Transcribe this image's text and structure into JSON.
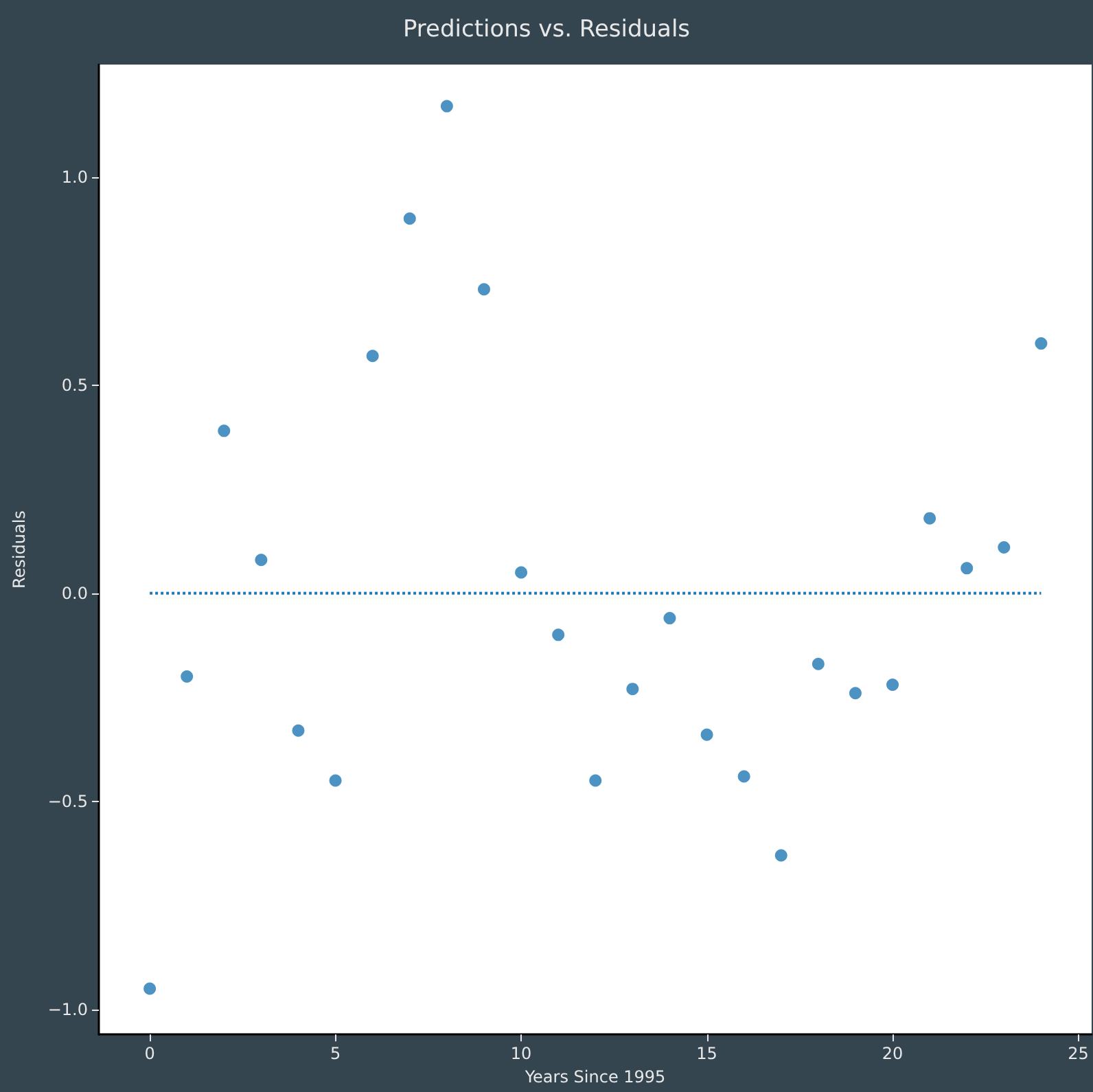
{
  "chart_data": {
    "type": "scatter",
    "title": "Predictions vs. Residuals",
    "xlabel": "Years Since 1995",
    "ylabel": "Residuals",
    "xlim": [
      -1.37,
      25.36
    ],
    "ylim": [
      -1.06,
      1.27
    ],
    "xticks": [
      0,
      5,
      10,
      15,
      20,
      25
    ],
    "yticks": [
      {
        "value": -1,
        "label": "−1.0"
      },
      {
        "value": -0.5,
        "label": "−0.5"
      },
      {
        "value": 0,
        "label": "0.0"
      },
      {
        "value": 0.5,
        "label": "0.5"
      },
      {
        "value": 1,
        "label": "1.0"
      }
    ],
    "grid": false,
    "marker": "circle",
    "series": [
      {
        "color": "#1f77b4",
        "x": [
          0,
          1,
          2,
          3,
          4,
          5,
          6,
          7,
          8,
          9,
          10,
          11,
          12,
          13,
          14,
          15,
          16,
          17,
          18,
          19,
          20,
          21,
          22,
          23,
          24
        ],
        "values": [
          -0.95,
          -0.2,
          0.39,
          0.08,
          -0.33,
          -0.45,
          0.57,
          0.9,
          1.17,
          0.73,
          0.05,
          -0.1,
          -0.45,
          -0.23,
          -0.06,
          -0.34,
          -0.44,
          -0.63,
          -0.17,
          -0.24,
          -0.22,
          0.18,
          0.06,
          0.11,
          0.6
        ]
      },
      {
        "type": "line",
        "color": "#1f77b4",
        "line_style": "dotted",
        "marker": "none",
        "x": [
          0,
          24
        ],
        "values": [
          0,
          0
        ]
      }
    ]
  }
}
